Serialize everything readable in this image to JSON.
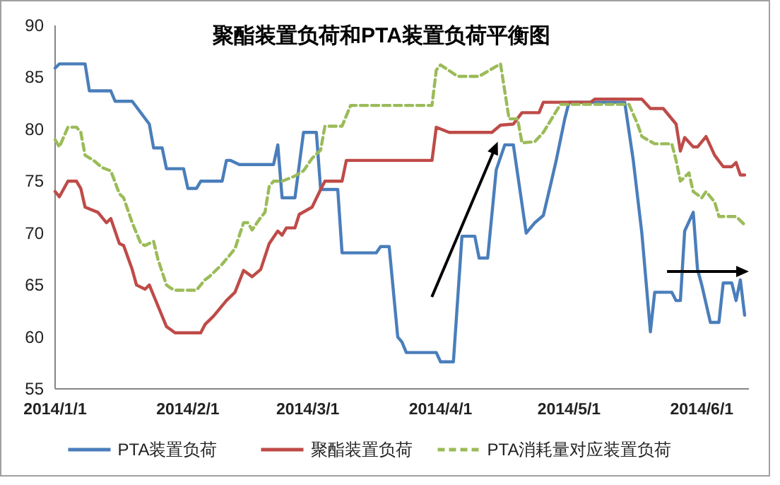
{
  "chart_data": {
    "type": "line",
    "title": "聚酯装置负荷和PTA装置负荷平衡图",
    "xlim": [
      "2014-01-01",
      "2014-06-12"
    ],
    "xticks": [
      {
        "value": "2014-01-01",
        "label": "2014/1/1"
      },
      {
        "value": "2014-02-01",
        "label": "2014/2/1"
      },
      {
        "value": "2014-03-01",
        "label": "2014/3/1"
      },
      {
        "value": "2014-04-01",
        "label": "2014/4/1"
      },
      {
        "value": "2014-05-01",
        "label": "2014/5/1"
      },
      {
        "value": "2014-06-01",
        "label": "2014/6/1"
      }
    ],
    "ylim": [
      55,
      90
    ],
    "yticks": [
      55,
      60,
      65,
      70,
      75,
      80,
      85,
      90
    ],
    "grid": false,
    "legend": "bottom",
    "marker": "none",
    "series": [
      {
        "name": "PTA装置负荷",
        "color": "#4a7ebb",
        "line_style": "solid",
        "x": [
          "2014-01-01",
          "2014-01-02",
          "2014-01-08",
          "2014-01-09",
          "2014-01-14",
          "2014-01-15",
          "2014-01-19",
          "2014-01-23",
          "2014-01-24",
          "2014-01-26",
          "2014-01-27",
          "2014-01-31",
          "2014-02-01",
          "2014-02-03",
          "2014-02-04",
          "2014-02-09",
          "2014-02-10",
          "2014-02-11",
          "2014-02-13",
          "2014-02-21",
          "2014-02-22",
          "2014-02-23",
          "2014-02-26",
          "2014-02-28",
          "2014-03-03",
          "2014-03-04",
          "2014-03-08",
          "2014-03-09",
          "2014-03-17",
          "2014-03-18",
          "2014-03-20",
          "2014-03-22",
          "2014-03-23",
          "2014-03-24",
          "2014-03-31",
          "2014-04-01",
          "2014-04-04",
          "2014-04-06",
          "2014-04-09",
          "2014-04-10",
          "2014-04-12",
          "2014-04-14",
          "2014-04-16",
          "2014-04-18",
          "2014-04-21",
          "2014-04-23",
          "2014-04-25",
          "2014-04-27",
          "2014-04-28",
          "2014-04-30",
          "2014-05-01",
          "2014-05-14",
          "2014-05-16",
          "2014-05-18",
          "2014-05-20",
          "2014-05-21",
          "2014-05-25",
          "2014-05-26",
          "2014-05-27",
          "2014-05-28",
          "2014-05-30",
          "2014-05-31",
          "2014-06-01",
          "2014-06-03",
          "2014-06-05",
          "2014-06-06",
          "2014-06-08",
          "2014-06-09",
          "2014-06-10",
          "2014-06-11"
        ],
        "values": [
          85.9,
          86.3,
          86.3,
          83.7,
          83.7,
          82.7,
          82.7,
          80.5,
          78.2,
          78.2,
          76.2,
          76.2,
          74.3,
          74.3,
          75,
          75,
          77,
          77,
          76.6,
          76.6,
          78.5,
          73.4,
          73.4,
          79.7,
          79.7,
          74.2,
          74.2,
          68.1,
          68.1,
          68.7,
          68.7,
          60,
          59.5,
          58.5,
          58.5,
          57.6,
          57.6,
          69.7,
          69.7,
          67.6,
          67.6,
          76.1,
          78.5,
          78.5,
          70,
          71,
          71.7,
          75.2,
          77,
          81,
          82.6,
          82.6,
          77,
          70,
          60.5,
          64.3,
          64.3,
          63.5,
          63.5,
          70.2,
          72,
          66.5,
          65,
          61.4,
          61.4,
          65.2,
          65.2,
          63.5,
          65.5,
          62.1
        ]
      },
      {
        "name": "聚酯装置负荷",
        "color": "#be4b48",
        "line_style": "solid",
        "x": [
          "2014-01-01",
          "2014-01-02",
          "2014-01-04",
          "2014-01-06",
          "2014-01-07",
          "2014-01-08",
          "2014-01-11",
          "2014-01-13",
          "2014-01-14",
          "2014-01-16",
          "2014-01-17",
          "2014-01-19",
          "2014-01-20",
          "2014-01-22",
          "2014-01-23",
          "2014-01-25",
          "2014-01-27",
          "2014-01-28",
          "2014-01-29",
          "2014-02-04",
          "2014-02-05",
          "2014-02-07",
          "2014-02-10",
          "2014-02-12",
          "2014-02-14",
          "2014-02-16",
          "2014-02-18",
          "2014-02-20",
          "2014-02-22",
          "2014-02-23",
          "2014-02-24",
          "2014-02-26",
          "2014-02-27",
          "2014-03-02",
          "2014-03-04",
          "2014-03-05",
          "2014-03-09",
          "2014-03-10",
          "2014-03-30",
          "2014-03-31",
          "2014-04-03",
          "2014-04-13",
          "2014-04-15",
          "2014-04-18",
          "2014-04-20",
          "2014-04-24",
          "2014-04-25",
          "2014-05-06",
          "2014-05-07",
          "2014-05-18",
          "2014-05-20",
          "2014-05-23",
          "2014-05-26",
          "2014-05-27",
          "2014-05-28",
          "2014-05-30",
          "2014-05-31",
          "2014-06-02",
          "2014-06-04",
          "2014-06-06",
          "2014-06-08",
          "2014-06-09",
          "2014-06-10",
          "2014-06-11"
        ],
        "values": [
          74,
          73.5,
          75,
          75,
          74.3,
          72.5,
          72,
          71,
          71.4,
          69,
          68.8,
          66.5,
          65,
          64.6,
          65,
          63,
          61,
          60.7,
          60.4,
          60.4,
          61.2,
          62,
          63.5,
          64.3,
          66.4,
          65.8,
          66.5,
          69,
          70.2,
          69.8,
          70.5,
          70.5,
          71.8,
          72.5,
          74.2,
          75,
          75,
          77,
          77,
          80.2,
          79.7,
          79.7,
          80.4,
          80.5,
          81.6,
          81.6,
          82.6,
          82.6,
          82.9,
          82.9,
          82,
          82,
          80.5,
          77.9,
          79.2,
          78.3,
          78.3,
          79.3,
          77.5,
          76.4,
          76.4,
          76.8,
          75.6,
          75.6
        ]
      },
      {
        "name": "PTA消耗量对应装置负荷",
        "color": "#9bbb59",
        "line_style": "dashed",
        "x": [
          "2014-01-01",
          "2014-01-02",
          "2014-01-04",
          "2014-01-06",
          "2014-01-07",
          "2014-01-08",
          "2014-01-10",
          "2014-01-12",
          "2014-01-14",
          "2014-01-16",
          "2014-01-17",
          "2014-01-19",
          "2014-01-21",
          "2014-01-22",
          "2014-01-24",
          "2014-01-25",
          "2014-01-27",
          "2014-01-28",
          "2014-01-29",
          "2014-02-03",
          "2014-02-05",
          "2014-02-06",
          "2014-02-09",
          "2014-02-11",
          "2014-02-12",
          "2014-02-14",
          "2014-02-15",
          "2014-02-16",
          "2014-02-18",
          "2014-02-19",
          "2014-02-20",
          "2014-02-21",
          "2014-02-23",
          "2014-02-26",
          "2014-02-28",
          "2014-03-02",
          "2014-03-04",
          "2014-03-05",
          "2014-03-09",
          "2014-03-11",
          "2014-03-30",
          "2014-03-31",
          "2014-04-01",
          "2014-04-05",
          "2014-04-10",
          "2014-04-15",
          "2014-04-17",
          "2014-04-19",
          "2014-04-20",
          "2014-04-23",
          "2014-04-25",
          "2014-04-29",
          "2014-05-15",
          "2014-05-17",
          "2014-05-18",
          "2014-05-21",
          "2014-05-25",
          "2014-05-26",
          "2014-05-27",
          "2014-05-29",
          "2014-05-30",
          "2014-06-01",
          "2014-06-02",
          "2014-06-04",
          "2014-06-05",
          "2014-06-09",
          "2014-06-11"
        ],
        "values": [
          79,
          78.3,
          80.2,
          80.2,
          79.7,
          77.5,
          77,
          76.3,
          76,
          73.8,
          73.4,
          71,
          69,
          68.8,
          69.2,
          67.5,
          65,
          64.7,
          64.5,
          64.5,
          65.5,
          65.8,
          67,
          68,
          68.5,
          71,
          71,
          70.3,
          71.5,
          72,
          74.5,
          75,
          75,
          75.5,
          76,
          77.2,
          78,
          80.3,
          80.3,
          82.3,
          82.3,
          85.7,
          86.2,
          85.1,
          85.1,
          86.3,
          81,
          81,
          78.7,
          78.8,
          79.7,
          82.4,
          82.4,
          80.5,
          79.3,
          78.6,
          78.6,
          77,
          75,
          75.8,
          74,
          73.4,
          74,
          73,
          71.6,
          71.6,
          70.8
        ]
      }
    ]
  }
}
